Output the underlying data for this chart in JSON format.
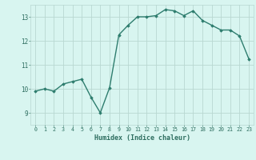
{
  "x": [
    0,
    1,
    2,
    3,
    4,
    5,
    6,
    7,
    8,
    9,
    10,
    11,
    12,
    13,
    14,
    15,
    16,
    17,
    18,
    19,
    20,
    21,
    22,
    23
  ],
  "y": [
    9.9,
    10.0,
    9.9,
    10.2,
    10.3,
    10.4,
    9.65,
    9.0,
    10.05,
    12.25,
    12.65,
    13.0,
    13.0,
    13.05,
    13.3,
    13.25,
    13.05,
    13.25,
    12.85,
    12.65,
    12.45,
    12.45,
    12.2,
    11.25
  ],
  "xlim": [
    -0.5,
    23.5
  ],
  "ylim": [
    8.5,
    13.5
  ],
  "yticks": [
    9,
    10,
    11,
    12,
    13
  ],
  "xticks": [
    0,
    1,
    2,
    3,
    4,
    5,
    6,
    7,
    8,
    9,
    10,
    11,
    12,
    13,
    14,
    15,
    16,
    17,
    18,
    19,
    20,
    21,
    22,
    23
  ],
  "xlabel": "Humidex (Indice chaleur)",
  "line_color": "#2e7d6e",
  "marker": "D",
  "marker_size": 1.8,
  "bg_color": "#d8f5f0",
  "grid_color": "#b8d8d2",
  "tick_color": "#2e6e60",
  "label_color": "#2e6e60",
  "line_width": 1.0
}
